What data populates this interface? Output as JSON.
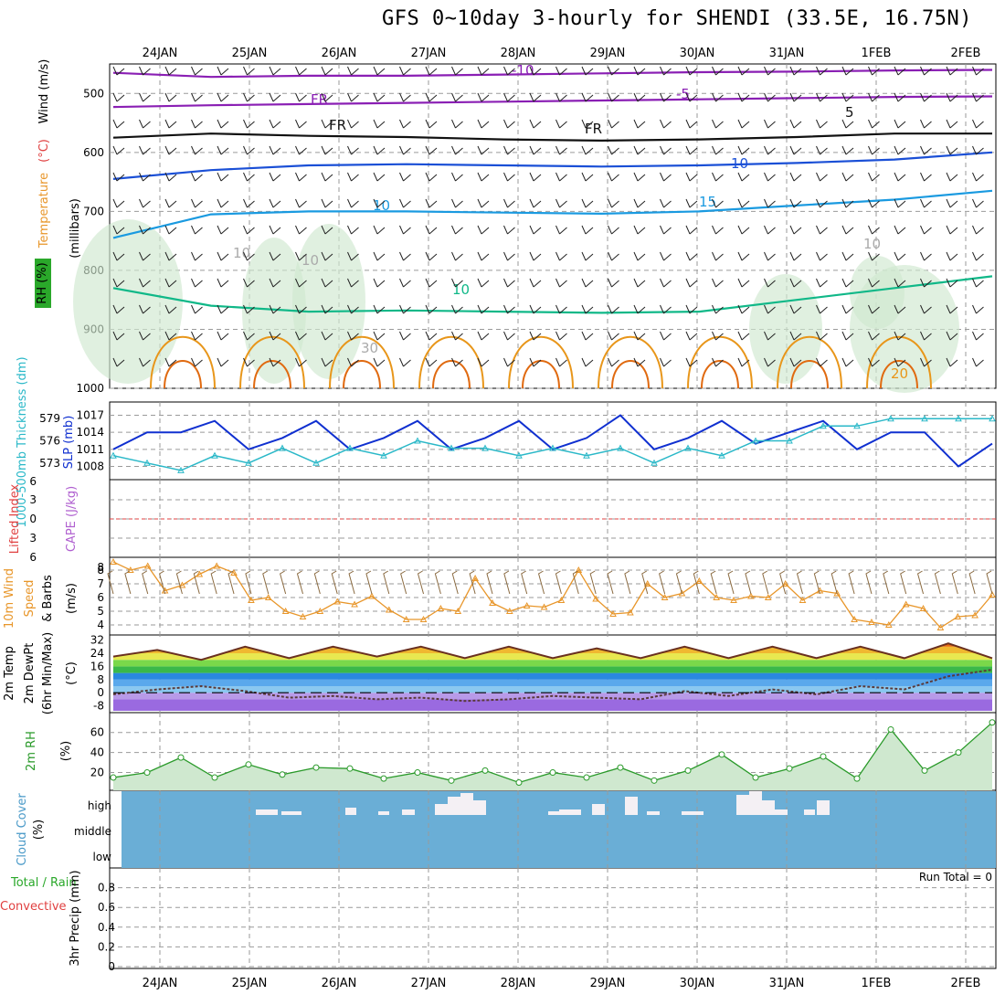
{
  "title": "GFS 0~10day 3-hourly for SHENDI (33.5E, 16.75N)",
  "colors": {
    "grid": "#9a9a9a",
    "temp_purple": "#8a1fb4",
    "temp_blue": "#1a4fd6",
    "temp_lightblue": "#1a9ae0",
    "temp_green": "#10b888",
    "temp_orange": "#e8961a",
    "temp_darkorange": "#e06a10",
    "temp_magenta": "#e0108a",
    "slp": "#1030d0",
    "thickness": "#2ab8c8",
    "wind_speed": "#e8962a",
    "rh2m": "#2a9a2a",
    "cloud": "#6aaed6",
    "lifted_zero": "#e04040"
  },
  "chart_data": [
    {
      "type": "contour",
      "panel": "upper-air",
      "x_labels": [
        "24JAN",
        "25JAN",
        "26JAN",
        "27JAN",
        "28JAN",
        "29JAN",
        "30JAN",
        "31JAN",
        "1FEB",
        "2FEB"
      ],
      "y_ticks": [
        500,
        600,
        700,
        800,
        900,
        1000
      ],
      "y_title": "(millibars)",
      "legend_labels": [
        "RH (%)",
        "Temperature",
        "(°C)",
        "Wind (m/s)"
      ],
      "contour_labels": [
        "-10",
        "-5",
        "FR",
        "FR",
        "FR",
        "5",
        "10",
        "10",
        "15",
        "10",
        "10",
        "10",
        "10",
        "20",
        "30"
      ],
      "temperature_lines_mb": [
        {
          "label": "-10",
          "values": [
            465,
            472,
            470,
            470,
            468,
            466,
            464,
            463,
            461,
            460
          ]
        },
        {
          "label": "-5",
          "values": [
            523,
            520,
            518,
            516,
            514,
            512,
            510,
            508,
            506,
            505
          ]
        },
        {
          "label": "FR",
          "values": [
            575,
            568,
            572,
            574,
            578,
            580,
            578,
            574,
            568,
            568
          ]
        },
        {
          "label": "5",
          "values": [
            645,
            630,
            622,
            620,
            622,
            624,
            622,
            618,
            612,
            600
          ]
        },
        {
          "label": "10",
          "values": [
            745,
            705,
            700,
            700,
            702,
            704,
            700,
            690,
            680,
            665
          ]
        },
        {
          "label": "15",
          "values": [
            830,
            860,
            870,
            868,
            870,
            872,
            870,
            850,
            830,
            810
          ]
        }
      ]
    },
    {
      "type": "line",
      "panel": "slp-thickness",
      "y_title_left": "1000-500mb Thickness (dm)",
      "y_title_right": "SLP (mb)",
      "y_ticks_left": [
        573,
        576,
        579
      ],
      "y_ticks_right": [
        1008,
        1011,
        1014,
        1017
      ],
      "series": [
        {
          "name": "SLP (mb)",
          "values": [
            1011,
            1014,
            1014,
            1016,
            1011,
            1013,
            1016,
            1011,
            1013,
            1016,
            1011,
            1013,
            1016,
            1011,
            1013,
            1017,
            1011,
            1013,
            1016,
            1012,
            1014,
            1016,
            1011,
            1014,
            1014,
            1008,
            1012
          ]
        },
        {
          "name": "1000-500mb Thickness (dm)",
          "values": [
            574,
            573,
            572,
            574,
            573,
            575,
            573,
            575,
            574,
            576,
            575,
            575,
            574,
            575,
            574,
            575,
            573,
            575,
            574,
            576,
            576,
            578,
            578,
            579,
            579,
            579,
            579
          ]
        }
      ]
    },
    {
      "type": "line",
      "panel": "cape-li",
      "y_title_left": "Lifted Index",
      "y_title_right": "CAPE (J/kg)",
      "y_ticks": [
        "6",
        "3",
        "0",
        "3",
        "6"
      ]
    },
    {
      "type": "line",
      "panel": "wind10m",
      "y_title": "10m Wind Speed & Barbs (m/s)",
      "y_ticks": [
        4,
        5,
        6,
        7,
        8
      ],
      "series": [
        {
          "name": "10m Wind Speed",
          "values": [
            8.6,
            8.0,
            8.3,
            6.5,
            6.9,
            7.7,
            8.3,
            7.8,
            5.8,
            6.0,
            5.0,
            4.6,
            5.0,
            5.7,
            5.5,
            6.1,
            5.1,
            4.4,
            4.4,
            5.2,
            5.0,
            7.4,
            5.6,
            5.0,
            5.4,
            5.3,
            5.8,
            8.0,
            5.9,
            4.8,
            4.9,
            7.0,
            6.0,
            6.3,
            7.2,
            6.0,
            5.8,
            6.1,
            6.0,
            7.0,
            5.8,
            6.5,
            6.3,
            4.4,
            4.2,
            4.0,
            5.5,
            5.2,
            3.8,
            4.6,
            4.7,
            6.2
          ]
        }
      ]
    },
    {
      "type": "area",
      "panel": "temp2m",
      "y_title": "2m Temp 2m DewPt (6hr Min/Max) (°C)",
      "y_ticks": [
        -8,
        0,
        8,
        16,
        24,
        32
      ],
      "series": [
        {
          "name": "2m Temp",
          "values": [
            22,
            26,
            20,
            28,
            21,
            28,
            22,
            28,
            21,
            28,
            21,
            27,
            21,
            28,
            21,
            28,
            21,
            28,
            21,
            30,
            21
          ]
        },
        {
          "name": "2m DewPt",
          "values": [
            -1,
            2,
            4,
            1,
            -3,
            -2,
            -4,
            -3,
            -5,
            -4,
            -2,
            -3,
            -4,
            1,
            -2,
            2,
            -1,
            4,
            2,
            10,
            14
          ]
        }
      ]
    },
    {
      "type": "area",
      "panel": "rh2m",
      "y_title": "2m RH (%)",
      "y_ticks": [
        20,
        40,
        60
      ],
      "series": [
        {
          "name": "2m RH",
          "values": [
            15,
            20,
            35,
            15,
            28,
            18,
            25,
            24,
            14,
            20,
            12,
            22,
            10,
            20,
            15,
            25,
            12,
            22,
            38,
            15,
            24,
            36,
            14,
            63,
            22,
            40,
            70
          ]
        }
      ]
    },
    {
      "type": "bar",
      "panel": "cloud",
      "y_title": "Cloud Cover (%)",
      "y_ticks": [
        "high",
        "middle",
        "low"
      ],
      "note": "high cloud fraction per step"
    },
    {
      "type": "bar",
      "panel": "precip",
      "y_title": "3hr Precip (mm)",
      "legend_labels": [
        "Total / Rain",
        "Convective"
      ],
      "y_ticks": [
        0,
        0.2,
        0.4,
        0.6,
        0.8
      ],
      "run_total": "Run Total = 0"
    }
  ]
}
